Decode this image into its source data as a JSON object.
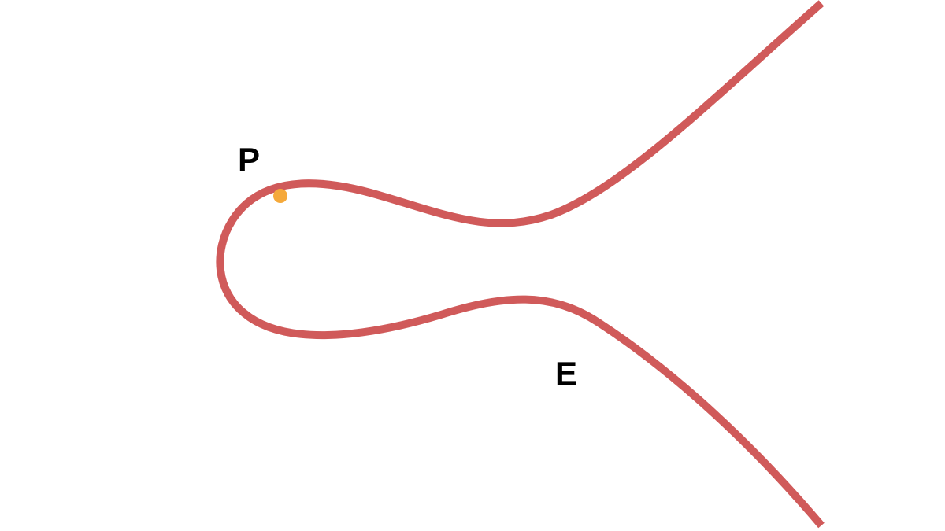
{
  "diagram": {
    "type": "elliptic-curve",
    "colors": {
      "curve": "#d05a5a",
      "point": "#f5a93b",
      "label": "#000000",
      "background": "#ffffff"
    },
    "labels": {
      "point": "P",
      "curve": "E"
    }
  }
}
